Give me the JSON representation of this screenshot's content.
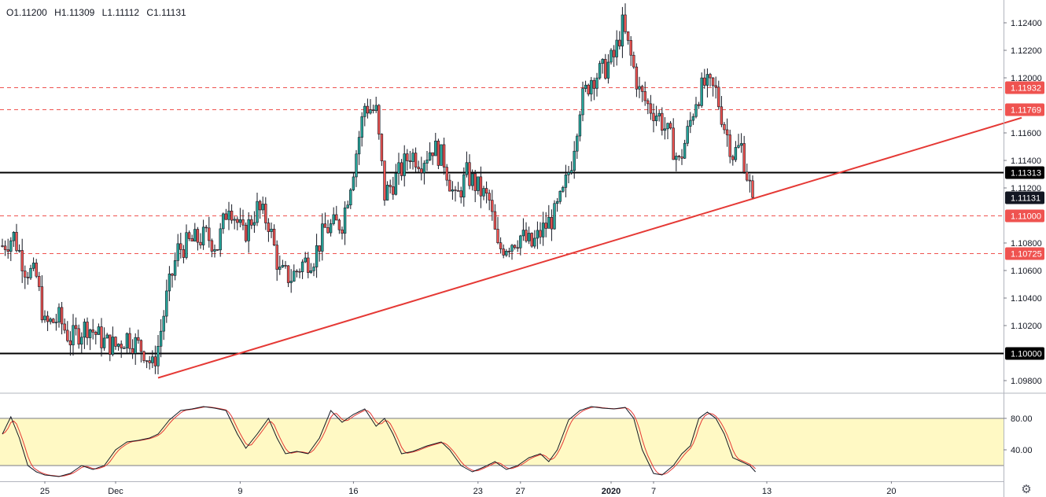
{
  "ohlc": {
    "open": "O1.11200",
    "high": "H1.11309",
    "low": "L1.11112",
    "close": "C1.11131"
  },
  "colors": {
    "up": "#26a69a",
    "down": "#ef5350",
    "trend": "#e53935",
    "level_dash": "#ef5350",
    "band": "#fff9c4",
    "k_line": "#131722",
    "d_line": "#e53935"
  },
  "icons": {
    "settings": "gear-icon"
  },
  "settings_glyph": "⚙",
  "chart_data": [
    {
      "type": "candlestick",
      "title": "",
      "ylim": [
        1.0972,
        1.1252
      ],
      "y_ticks": [
        "1.09800",
        "1.10200",
        "1.10400",
        "1.10600",
        "1.10800",
        "1.11200",
        "1.11400",
        "1.11600",
        "1.12000",
        "1.12200",
        "1.12400"
      ],
      "x_ticks": [
        "25",
        "Dec",
        "9",
        "16",
        "23",
        "27",
        "2020",
        "7",
        "13",
        "20"
      ],
      "x_tick_bars": [
        15,
        40,
        84,
        124,
        168,
        183,
        215,
        230,
        270,
        314
      ],
      "bar_count": 360,
      "grid": false,
      "waypoints": [
        [
          0,
          1.1078
        ],
        [
          4,
          1.1085
        ],
        [
          8,
          1.1062
        ],
        [
          12,
          1.1055
        ],
        [
          15,
          1.102
        ],
        [
          20,
          1.1025
        ],
        [
          24,
          1.101
        ],
        [
          30,
          1.102
        ],
        [
          36,
          1.1008
        ],
        [
          40,
          1.1005
        ],
        [
          44,
          1.1012
        ],
        [
          50,
          1.1002
        ],
        [
          53,
          1.099
        ],
        [
          55,
          1.1005
        ],
        [
          58,
          1.104
        ],
        [
          62,
          1.1075
        ],
        [
          66,
          1.108
        ],
        [
          72,
          1.1085
        ],
        [
          76,
          1.1078
        ],
        [
          80,
          1.111
        ],
        [
          85,
          1.1085
        ],
        [
          90,
          1.1105
        ],
        [
          94,
          1.1095
        ],
        [
          98,
          1.1058
        ],
        [
          102,
          1.1055
        ],
        [
          106,
          1.1065
        ],
        [
          110,
          1.107
        ],
        [
          114,
          1.109
        ],
        [
          120,
          1.1095
        ],
        [
          124,
          1.1135
        ],
        [
          128,
          1.118
        ],
        [
          132,
          1.1175
        ],
        [
          135,
          1.1115
        ],
        [
          140,
          1.113
        ],
        [
          144,
          1.1145
        ],
        [
          148,
          1.114
        ],
        [
          152,
          1.115
        ],
        [
          156,
          1.114
        ],
        [
          160,
          1.111
        ],
        [
          164,
          1.113
        ],
        [
          168,
          1.112
        ],
        [
          172,
          1.111
        ],
        [
          175,
          1.1075
        ],
        [
          179,
          1.108
        ],
        [
          183,
          1.1085
        ],
        [
          187,
          1.1078
        ],
        [
          191,
          1.109
        ],
        [
          195,
          1.11
        ],
        [
          198,
          1.1115
        ],
        [
          201,
          1.114
        ],
        [
          204,
          1.118
        ],
        [
          208,
          1.12
        ],
        [
          212,
          1.1205
        ],
        [
          216,
          1.1215
        ],
        [
          219,
          1.1238
        ],
        [
          222,
          1.1215
        ],
        [
          225,
          1.119
        ],
        [
          228,
          1.118
        ],
        [
          232,
          1.1172
        ],
        [
          236,
          1.1155
        ],
        [
          239,
          1.1138
        ],
        [
          242,
          1.116
        ],
        [
          245,
          1.1185
        ],
        [
          248,
          1.1195
        ],
        [
          252,
          1.119
        ],
        [
          255,
          1.1165
        ],
        [
          258,
          1.1145
        ],
        [
          261,
          1.115
        ],
        [
          263,
          1.113
        ],
        [
          265,
          1.1112
        ]
      ],
      "horizontal_levels": [
        {
          "value": 1.11932,
          "label": "1.11932",
          "style": "dashed"
        },
        {
          "value": 1.11769,
          "label": "1.11769",
          "style": "dashed"
        },
        {
          "value": 1.11313,
          "label": "1.11313",
          "style": "solid"
        },
        {
          "value": 1.11,
          "label": "1.11000",
          "style": "dashed"
        },
        {
          "value": 1.10725,
          "label": "1.10725",
          "style": "dashed"
        },
        {
          "value": 1.1,
          "label": "1.10000",
          "style": "solid"
        }
      ],
      "current_price": {
        "value": 1.11131,
        "label": "1.11131"
      },
      "trend_line": {
        "start": [
          55,
          1.0982
        ],
        "end": [
          360,
          1.1171
        ]
      }
    },
    {
      "type": "line",
      "title": "",
      "ylim": [
        0,
        110
      ],
      "y_ticks": [
        "80.00",
        "40.00"
      ],
      "band": [
        20,
        80
      ],
      "series_waypoints": [
        [
          0,
          60
        ],
        [
          3,
          82
        ],
        [
          6,
          55
        ],
        [
          9,
          20
        ],
        [
          12,
          12
        ],
        [
          15,
          8
        ],
        [
          20,
          6
        ],
        [
          24,
          10
        ],
        [
          28,
          20
        ],
        [
          32,
          15
        ],
        [
          36,
          20
        ],
        [
          40,
          40
        ],
        [
          44,
          50
        ],
        [
          48,
          52
        ],
        [
          52,
          55
        ],
        [
          55,
          60
        ],
        [
          59,
          78
        ],
        [
          63,
          90
        ],
        [
          67,
          92
        ],
        [
          71,
          95
        ],
        [
          75,
          93
        ],
        [
          79,
          90
        ],
        [
          83,
          60
        ],
        [
          86,
          42
        ],
        [
          90,
          60
        ],
        [
          94,
          80
        ],
        [
          97,
          55
        ],
        [
          100,
          35
        ],
        [
          104,
          38
        ],
        [
          108,
          35
        ],
        [
          112,
          55
        ],
        [
          116,
          90
        ],
        [
          120,
          75
        ],
        [
          124,
          85
        ],
        [
          128,
          92
        ],
        [
          132,
          70
        ],
        [
          135,
          80
        ],
        [
          138,
          60
        ],
        [
          141,
          35
        ],
        [
          145,
          38
        ],
        [
          150,
          45
        ],
        [
          155,
          50
        ],
        [
          158,
          40
        ],
        [
          162,
          20
        ],
        [
          166,
          12
        ],
        [
          170,
          18
        ],
        [
          174,
          25
        ],
        [
          178,
          15
        ],
        [
          182,
          20
        ],
        [
          186,
          30
        ],
        [
          190,
          35
        ],
        [
          193,
          25
        ],
        [
          196,
          40
        ],
        [
          200,
          78
        ],
        [
          204,
          90
        ],
        [
          208,
          95
        ],
        [
          212,
          93
        ],
        [
          216,
          92
        ],
        [
          220,
          94
        ],
        [
          223,
          80
        ],
        [
          226,
          40
        ],
        [
          230,
          10
        ],
        [
          233,
          8
        ],
        [
          237,
          20
        ],
        [
          240,
          35
        ],
        [
          243,
          45
        ],
        [
          246,
          80
        ],
        [
          249,
          88
        ],
        [
          252,
          80
        ],
        [
          255,
          60
        ],
        [
          258,
          30
        ],
        [
          261,
          25
        ],
        [
          264,
          20
        ],
        [
          266,
          12
        ]
      ]
    }
  ]
}
